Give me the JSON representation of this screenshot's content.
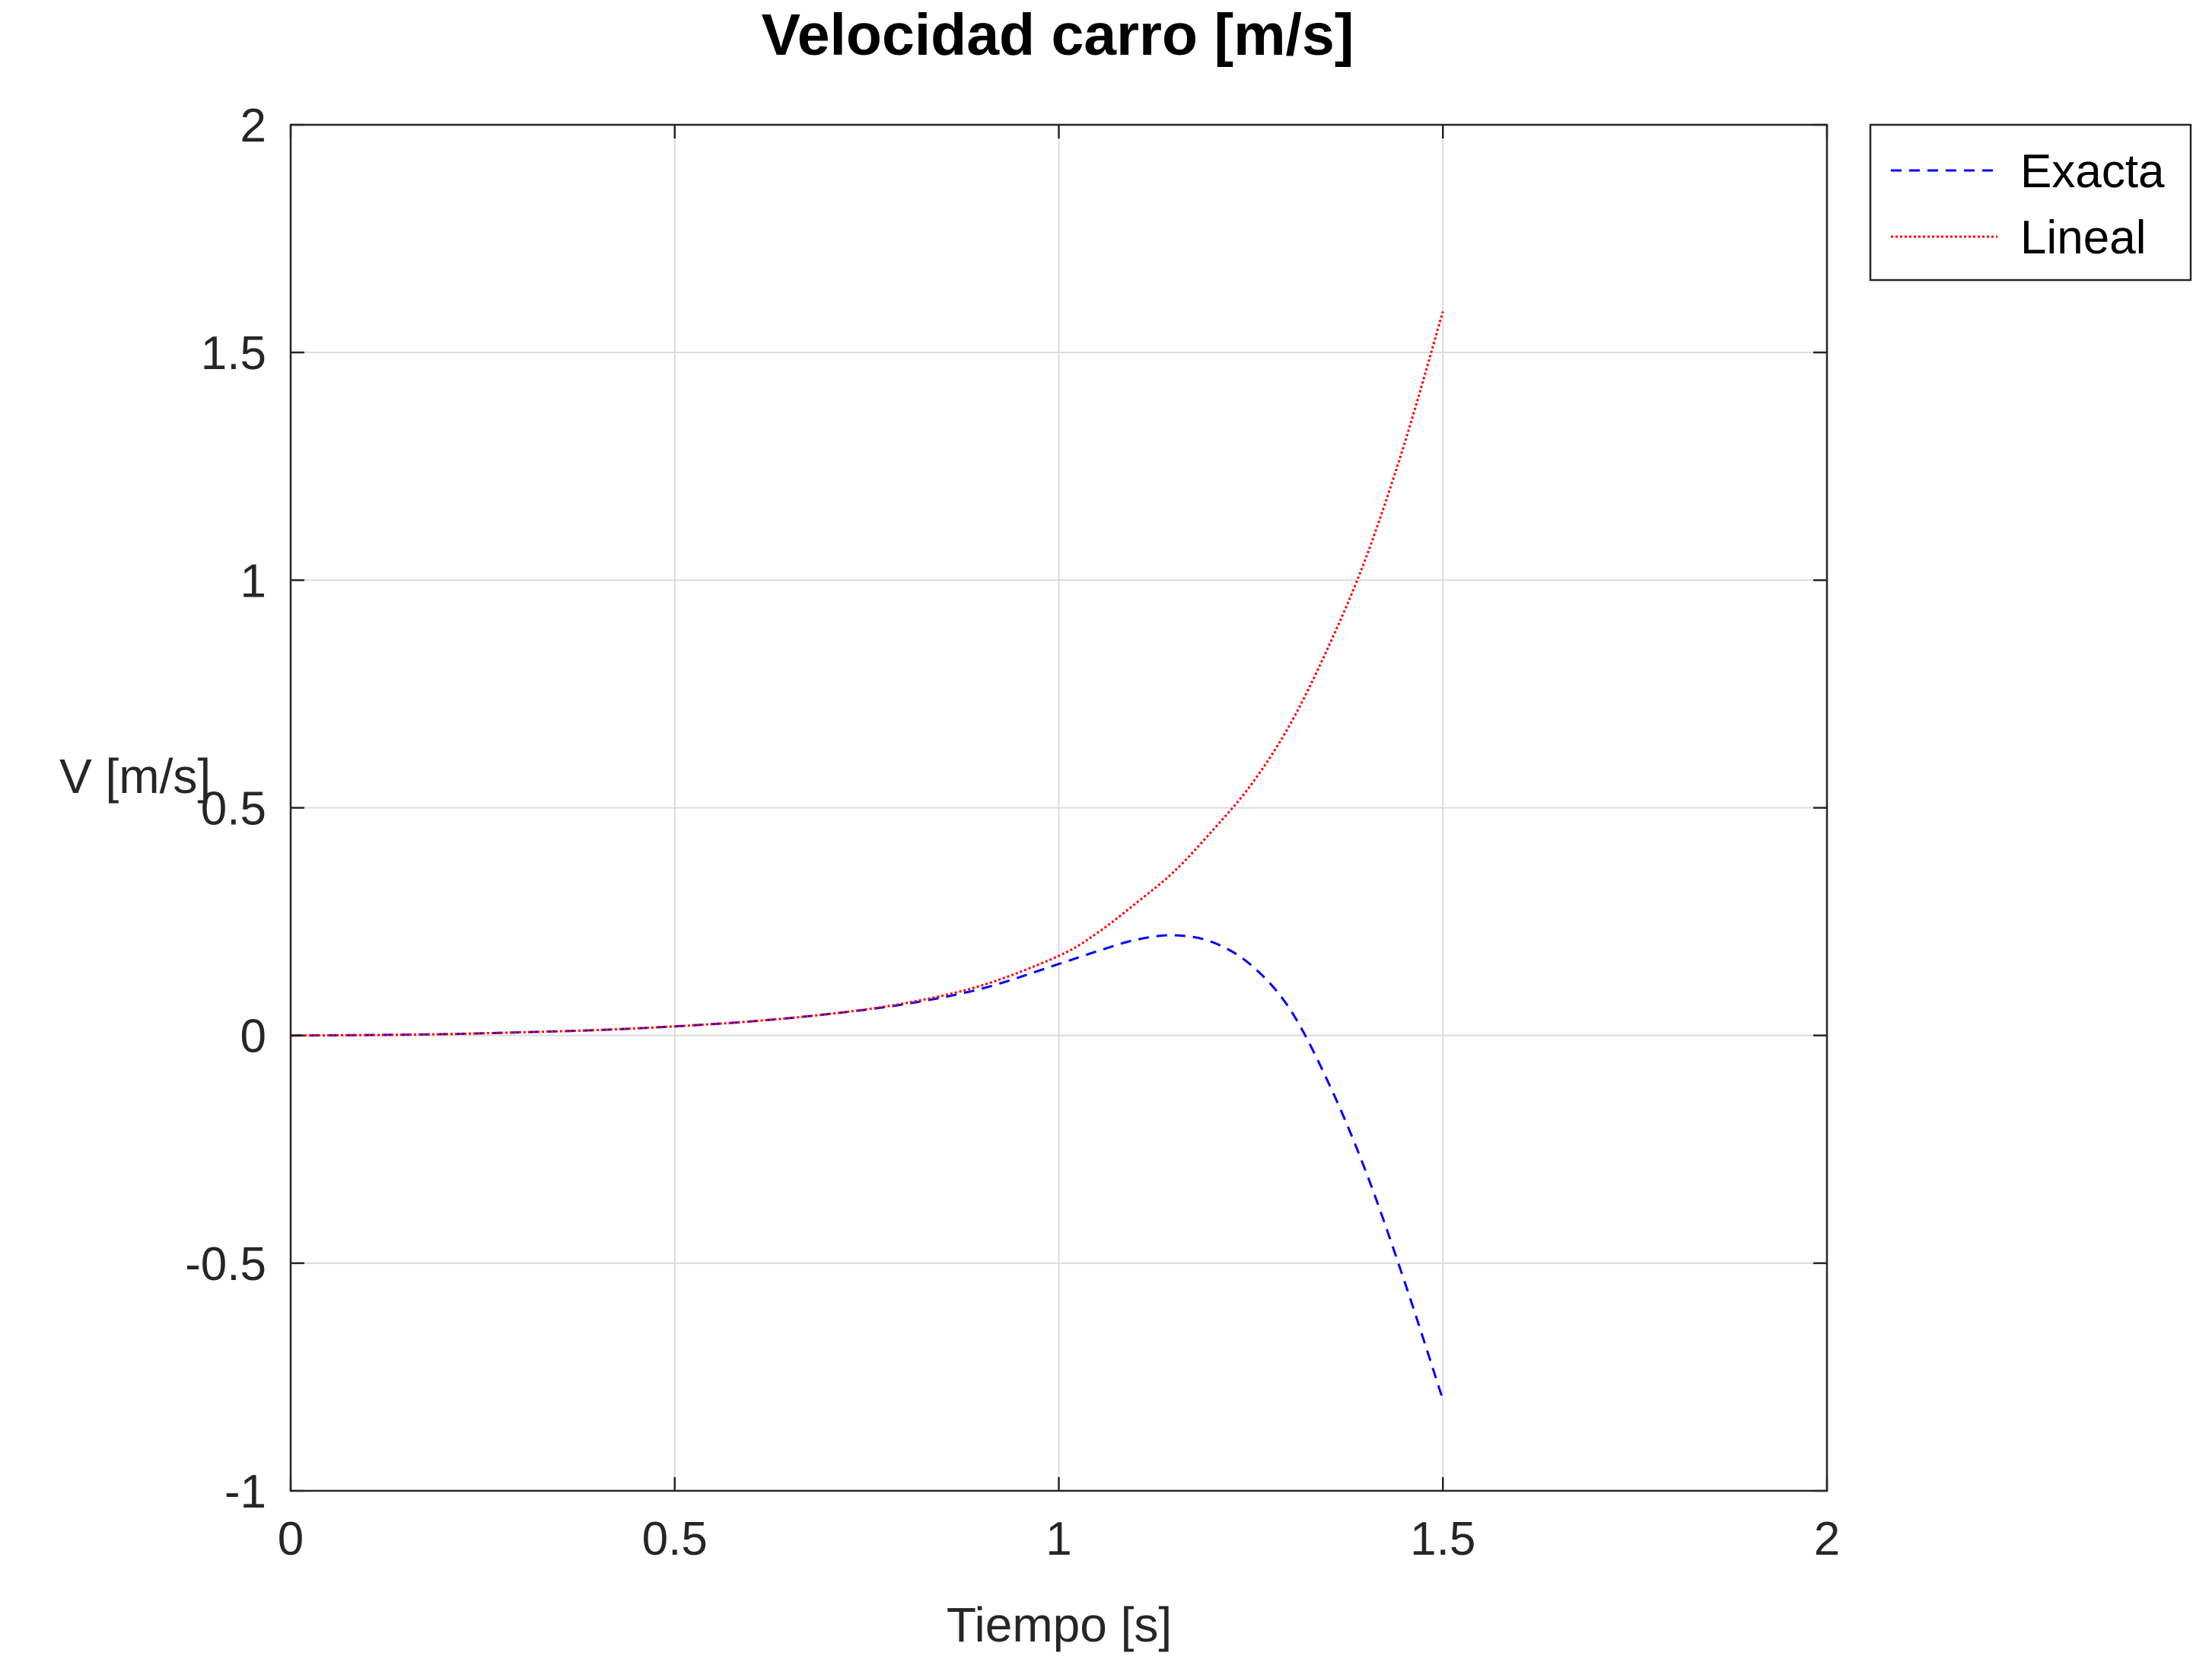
{
  "chart_data": {
    "type": "line",
    "title": "Velocidad carro [m/s]",
    "xlabel": "Tiempo [s]",
    "ylabel": "V [m/s]",
    "xlim": [
      0,
      2
    ],
    "ylim": [
      -1,
      2
    ],
    "xticks": [
      "0",
      "0.5",
      "1",
      "1.5",
      "2"
    ],
    "yticks": [
      "-1",
      "-0.5",
      "0",
      "0.5",
      "1",
      "1.5",
      "2"
    ],
    "grid": true,
    "legend_position": "outside-top-right",
    "series": [
      {
        "name": "Exacta",
        "color": "#0000ff",
        "style": "dashed",
        "x": [
          0,
          0.1,
          0.2,
          0.3,
          0.4,
          0.5,
          0.6,
          0.7,
          0.8,
          0.9,
          1.0,
          1.05,
          1.1,
          1.15,
          1.2,
          1.25,
          1.3,
          1.35,
          1.4,
          1.45,
          1.5
        ],
        "y": [
          0,
          0.001,
          0.003,
          0.007,
          0.012,
          0.02,
          0.031,
          0.047,
          0.069,
          0.103,
          0.157,
          0.185,
          0.21,
          0.22,
          0.205,
          0.155,
          0.06,
          -0.1,
          -0.3,
          -0.54,
          -0.8
        ]
      },
      {
        "name": "Lineal",
        "color": "#ff0000",
        "style": "dotted",
        "x": [
          0,
          0.1,
          0.2,
          0.3,
          0.4,
          0.5,
          0.6,
          0.7,
          0.8,
          0.9,
          1.0,
          1.05,
          1.1,
          1.15,
          1.2,
          1.25,
          1.3,
          1.35,
          1.4,
          1.45,
          1.5
        ],
        "y": [
          0,
          0.001,
          0.003,
          0.007,
          0.012,
          0.02,
          0.031,
          0.047,
          0.071,
          0.11,
          0.175,
          0.225,
          0.29,
          0.36,
          0.45,
          0.55,
          0.68,
          0.85,
          1.05,
          1.3,
          1.59
        ]
      }
    ]
  }
}
